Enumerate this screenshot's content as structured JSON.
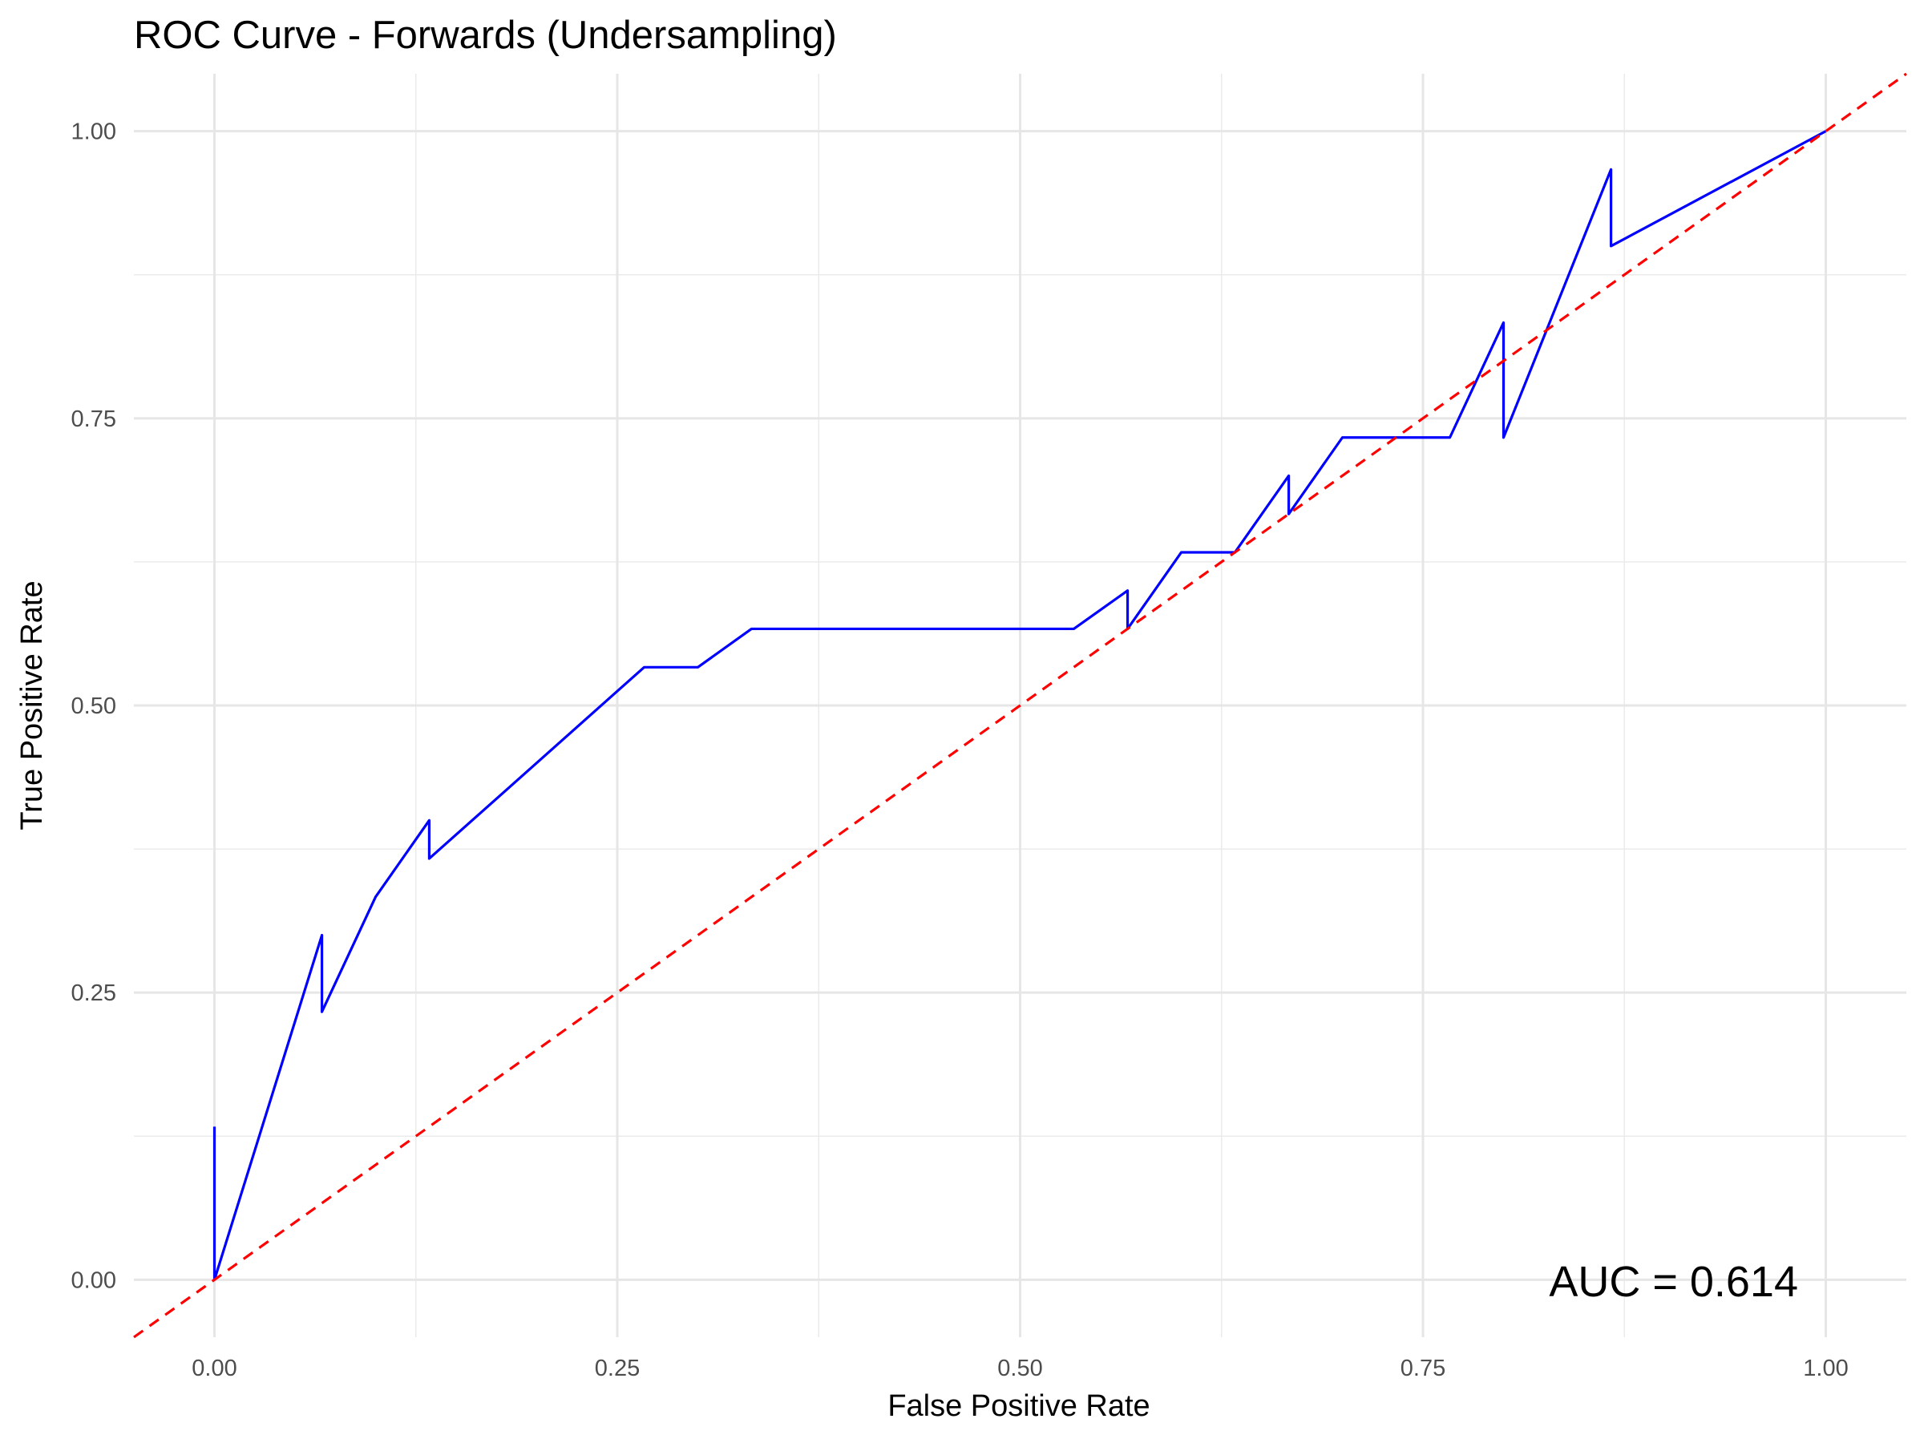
{
  "chart_data": {
    "type": "line",
    "title": "ROC Curve - Forwards (Undersampling)",
    "xlabel": "False Positive Rate",
    "ylabel": "True Positive Rate",
    "xlim": [
      -0.05,
      1.05
    ],
    "ylim": [
      -0.05,
      1.05
    ],
    "x_ticks": [
      "0.00",
      "0.25",
      "0.50",
      "0.75",
      "1.00"
    ],
    "y_ticks": [
      "0.00",
      "0.25",
      "0.50",
      "0.75",
      "1.00"
    ],
    "x_tick_values": [
      0,
      0.25,
      0.5,
      0.75,
      1.0
    ],
    "y_tick_values": [
      0,
      0.25,
      0.5,
      0.75,
      1.0
    ],
    "grid": true,
    "annotation": "AUC = 0.614",
    "series": [
      {
        "color": "#0000ff",
        "style": "solid",
        "x": [
          0,
          0,
          0.0667,
          0.0667,
          0.1,
          0.1333,
          0.1333,
          0.2667,
          0.3,
          0.3333,
          0.5333,
          0.5667,
          0.5667,
          0.6,
          0.6333,
          0.6667,
          0.6667,
          0.7,
          0.7667,
          0.8,
          0.8,
          0.8667,
          0.8667,
          1.0
        ],
        "y": [
          0.1333,
          0,
          0.3,
          0.2333,
          0.3333,
          0.4,
          0.3667,
          0.5333,
          0.5333,
          0.5667,
          0.5667,
          0.6,
          0.5667,
          0.6333,
          0.6333,
          0.7,
          0.6667,
          0.7333,
          0.7333,
          0.8333,
          0.7333,
          0.9667,
          0.9,
          1.0
        ]
      },
      {
        "color": "#ff0000",
        "style": "dashed",
        "x": [
          -0.05,
          1.05
        ],
        "y": [
          -0.05,
          1.05
        ]
      }
    ]
  }
}
